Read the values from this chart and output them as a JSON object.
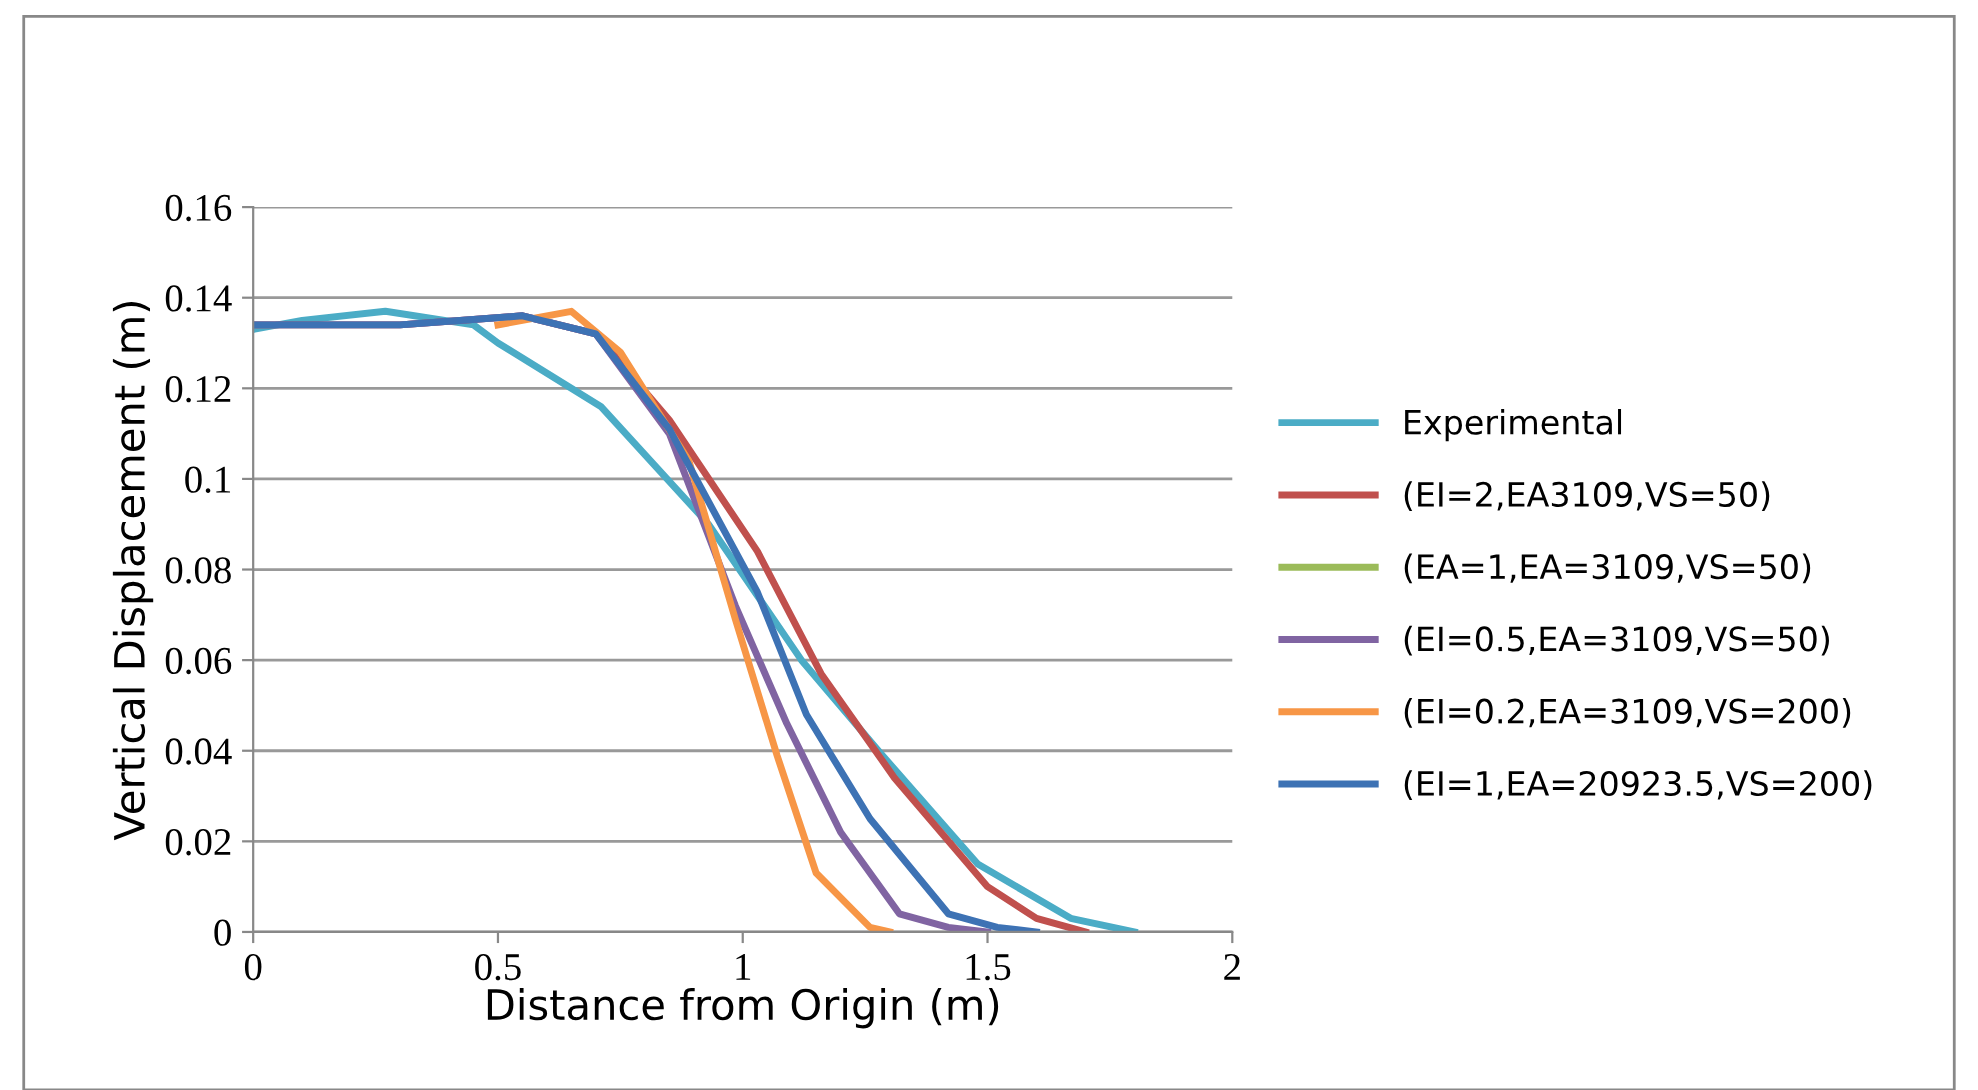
{
  "chart_data": {
    "type": "line",
    "xlabel": "Distance from Origin (m)",
    "ylabel": "Vertical Displacement (m)",
    "xlim": [
      0,
      2
    ],
    "xticks": [
      0,
      0.5,
      1,
      1.5,
      2
    ],
    "ylim": [
      0,
      0.16
    ],
    "yticks": [
      0,
      0.02,
      0.04,
      0.06,
      0.08,
      0.1,
      0.12,
      0.14,
      0.16
    ],
    "grid": "y",
    "legend": "right",
    "marker": "none",
    "line_style": "solid",
    "series": [
      {
        "name": "Experimental",
        "color": "#4bacc6",
        "x": [
          0,
          0.1,
          0.27,
          0.45,
          0.5,
          0.71,
          0.93,
          1.12,
          1.285,
          1.48,
          1.67,
          1.8
        ],
        "values": [
          0.133,
          0.135,
          0.137,
          0.134,
          0.13,
          0.116,
          0.09,
          0.06,
          0.039,
          0.015,
          0.003,
          0
        ]
      },
      {
        "name": "(EI=2,EA3109,VS=50)",
        "color": "#c0504d",
        "x": [
          0,
          0.3,
          0.55,
          0.7,
          0.85,
          1.03,
          1.16,
          1.31,
          1.5,
          1.6,
          1.7
        ],
        "values": [
          0.134,
          0.134,
          0.136,
          0.132,
          0.113,
          0.084,
          0.057,
          0.034,
          0.01,
          0.003,
          0
        ]
      },
      {
        "name": "(EA=1,EA=3109,VS=50)",
        "color": "#9bbb59"
      },
      {
        "name": "(EI=0.5,EA=3109,VS=50)",
        "color": "#8064a2",
        "x": [
          0,
          0.3,
          0.55,
          0.7,
          0.85,
          0.985,
          1.09,
          1.2,
          1.32,
          1.42,
          1.5
        ],
        "values": [
          0.134,
          0.134,
          0.136,
          0.132,
          0.11,
          0.072,
          0.046,
          0.022,
          0.004,
          0.001,
          0
        ]
      },
      {
        "name": "(EI=0.2,EA=3109,VS=200)",
        "color": "#f79646",
        "x": [
          0.5,
          0.65,
          0.75,
          0.89,
          0.985,
          1.07,
          1.15,
          1.26,
          1.3
        ],
        "values": [
          0.134,
          0.137,
          0.128,
          0.104,
          0.069,
          0.039,
          0.013,
          0.001,
          0
        ]
      },
      {
        "name": "(EI=1,EA=20923.5,VS=200)",
        "color": "#3d72b4",
        "x": [
          0,
          0.3,
          0.55,
          0.7,
          0.85,
          1.03,
          1.13,
          1.26,
          1.42,
          1.52,
          1.6
        ],
        "values": [
          0.134,
          0.134,
          0.136,
          0.132,
          0.111,
          0.075,
          0.048,
          0.025,
          0.004,
          0.001,
          0
        ]
      }
    ]
  }
}
